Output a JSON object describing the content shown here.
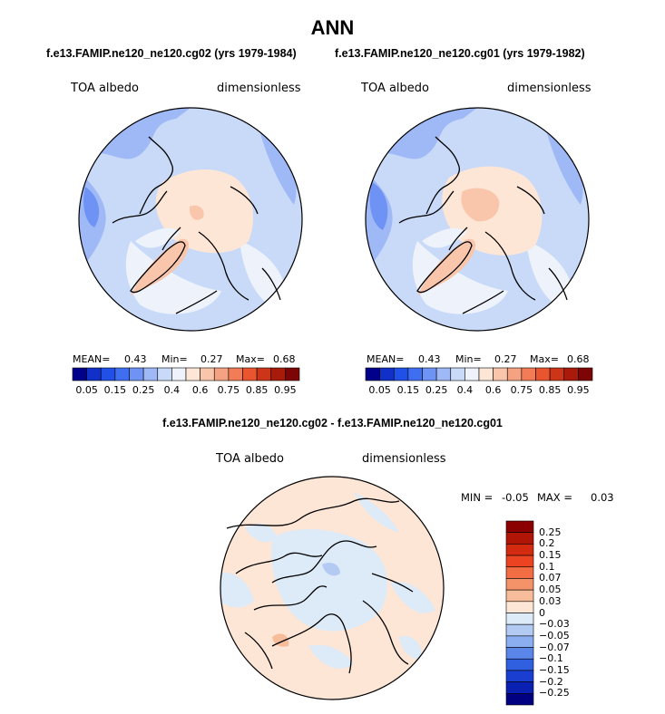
{
  "title": "ANN",
  "panels": [
    {
      "case_title": "f.e13.FAMIP.ne120_ne120.cg02 (yrs 1979-1984)",
      "variable": "TOA albedo",
      "units": "dimensionless",
      "stats": {
        "mean_label": "MEAN=",
        "mean": "0.43",
        "min_label": "Min=",
        "min": "0.27",
        "max_label": "Max=",
        "max": "0.68"
      }
    },
    {
      "case_title": "f.e13.FAMIP.ne120_ne120.cg01 (yrs 1979-1982)",
      "variable": "TOA albedo",
      "units": "dimensionless",
      "stats": {
        "mean_label": "MEAN=",
        "mean": "0.43",
        "min_label": "Min=",
        "min": "0.27",
        "max_label": "Max=",
        "max": "0.68"
      }
    }
  ],
  "colorbar": {
    "colors": [
      "#00008b",
      "#1030c8",
      "#2050e8",
      "#3f6ff0",
      "#6f93f4",
      "#9fb9f7",
      "#c8daf8",
      "#eef3fb",
      "#fde6d6",
      "#f9c5ab",
      "#f5a282",
      "#f27c57",
      "#e9552f",
      "#cc3518",
      "#a81a0a",
      "#7d0505"
    ],
    "tick_labels": [
      "0.05",
      "0.15",
      "0.25",
      "0.4",
      "0.6",
      "0.75",
      "0.85",
      "0.95"
    ]
  },
  "difference": {
    "title": "f.e13.FAMIP.ne120_ne120.cg02 - f.e13.FAMIP.ne120_ne120.cg01",
    "variable": "TOA albedo",
    "units": "dimensionless",
    "min_label": "MIN =",
    "min": "-0.05",
    "max_label": "MAX =",
    "max": "0.03",
    "legend_levels": [
      "0.25",
      "0.2",
      "0.15",
      "0.1",
      "0.07",
      "0.05",
      "0.03",
      "0",
      "-0.03",
      "-0.05",
      "-0.07",
      "-0.1",
      "-0.15",
      "-0.2",
      "-0.25"
    ],
    "legend_colors": [
      "#8b0000",
      "#b01505",
      "#d42a10",
      "#ec4422",
      "#f26c44",
      "#f4936a",
      "#f7bc9a",
      "#fde6d6",
      "#ddeaf8",
      "#b3cbf3",
      "#8aaef0",
      "#5a86ea",
      "#3060e0",
      "#1a3ed0",
      "#0a20b0",
      "#000080"
    ]
  }
}
